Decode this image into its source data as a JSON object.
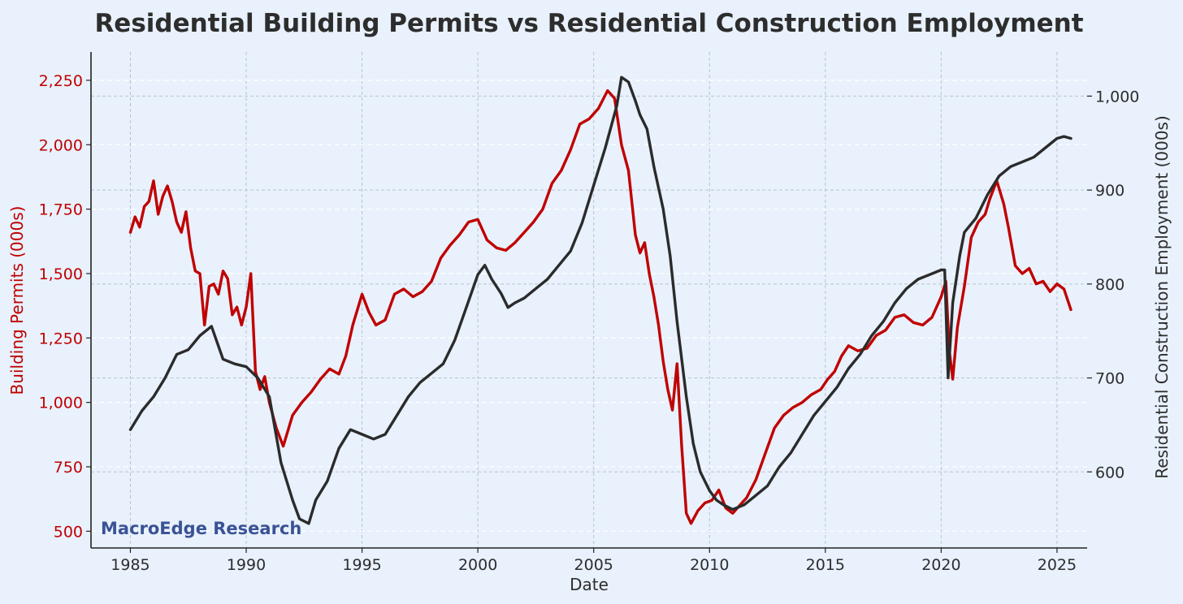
{
  "chart_data": {
    "type": "line",
    "title": "Residential Building Permits vs Residential Construction Employment",
    "xlabel": "Date",
    "ylabel_left": "Building Permits (000s)",
    "ylabel_right": "Residential Construction Employment (000s)",
    "watermark": "MacroEdge Research",
    "xlim": [
      1983.3,
      2026.3
    ],
    "x_ticks": [
      1985,
      1990,
      1995,
      2000,
      2005,
      2010,
      2015,
      2020,
      2025
    ],
    "x_tick_labels": [
      "1985",
      "1990",
      "1995",
      "2000",
      "2005",
      "2010",
      "2015",
      "2020",
      "2025"
    ],
    "ylim_left": [
      435,
      2360
    ],
    "y_ticks_left": [
      500,
      750,
      1000,
      1250,
      1500,
      1750,
      2000,
      2250
    ],
    "y_tick_labels_left": [
      "500",
      "750",
      "1,000",
      "1,250",
      "1,500",
      "1,750",
      "2,000",
      "2,250"
    ],
    "ylim_right": [
      519,
      1047
    ],
    "y_ticks_right": [
      600,
      700,
      800,
      900,
      1000
    ],
    "y_tick_labels_right": [
      "600",
      "700",
      "800",
      "900",
      "1,000"
    ],
    "grid": true,
    "colors": {
      "permits": "#c00000",
      "employment": "#2b2b2b",
      "left_axis": "#c00000",
      "right_axis": "#2d2d2d",
      "watermark": "#3a5296"
    },
    "series": [
      {
        "key": "permits",
        "axis": "left",
        "x": [
          1985.0,
          1985.2,
          1985.4,
          1985.6,
          1985.8,
          1986.0,
          1986.2,
          1986.4,
          1986.6,
          1986.8,
          1987.0,
          1987.2,
          1987.4,
          1987.6,
          1987.8,
          1988.0,
          1988.2,
          1988.4,
          1988.6,
          1988.8,
          1989.0,
          1989.2,
          1989.4,
          1989.6,
          1989.8,
          1990.0,
          1990.2,
          1990.4,
          1990.6,
          1990.8,
          1991.0,
          1991.3,
          1991.6,
          1992.0,
          1992.4,
          1992.8,
          1993.2,
          1993.6,
          1994.0,
          1994.3,
          1994.6,
          1995.0,
          1995.3,
          1995.6,
          1996.0,
          1996.4,
          1996.8,
          1997.2,
          1997.6,
          1998.0,
          1998.4,
          1998.8,
          1999.2,
          1999.6,
          2000.0,
          2000.4,
          2000.8,
          2001.2,
          2001.6,
          2002.0,
          2002.4,
          2002.8,
          2003.2,
          2003.6,
          2004.0,
          2004.4,
          2004.8,
          2005.2,
          2005.6,
          2005.9,
          2006.2,
          2006.5,
          2006.8,
          2007.0,
          2007.2,
          2007.4,
          2007.6,
          2007.8,
          2008.0,
          2008.2,
          2008.4,
          2008.6,
          2008.8,
          2009.0,
          2009.2,
          2009.5,
          2009.8,
          2010.1,
          2010.4,
          2010.7,
          2011.0,
          2011.3,
          2011.6,
          2012.0,
          2012.4,
          2012.8,
          2013.2,
          2013.6,
          2014.0,
          2014.4,
          2014.8,
          2015.1,
          2015.4,
          2015.7,
          2016.0,
          2016.4,
          2016.8,
          2017.2,
          2017.6,
          2018.0,
          2018.4,
          2018.8,
          2019.2,
          2019.6,
          2020.0,
          2020.2,
          2020.35,
          2020.5,
          2020.7,
          2021.0,
          2021.3,
          2021.6,
          2021.9,
          2022.1,
          2022.4,
          2022.7,
          2022.9,
          2023.2,
          2023.5,
          2023.8,
          2024.1,
          2024.4,
          2024.7,
          2025.0,
          2025.3,
          2025.6
        ],
        "values": [
          1660,
          1720,
          1680,
          1760,
          1780,
          1860,
          1730,
          1800,
          1840,
          1780,
          1700,
          1660,
          1740,
          1600,
          1510,
          1500,
          1300,
          1450,
          1460,
          1420,
          1510,
          1480,
          1340,
          1370,
          1300,
          1370,
          1500,
          1120,
          1050,
          1100,
          1000,
          900,
          830,
          950,
          1000,
          1040,
          1090,
          1130,
          1110,
          1180,
          1300,
          1420,
          1350,
          1300,
          1320,
          1420,
          1440,
          1410,
          1430,
          1470,
          1560,
          1610,
          1650,
          1700,
          1710,
          1630,
          1600,
          1590,
          1620,
          1660,
          1700,
          1750,
          1850,
          1900,
          1980,
          2080,
          2100,
          2140,
          2210,
          2180,
          2000,
          1900,
          1650,
          1580,
          1620,
          1500,
          1410,
          1300,
          1160,
          1050,
          970,
          1150,
          830,
          570,
          530,
          580,
          610,
          620,
          660,
          590,
          570,
          600,
          630,
          700,
          800,
          900,
          950,
          980,
          1000,
          1030,
          1050,
          1090,
          1120,
          1180,
          1220,
          1200,
          1210,
          1260,
          1280,
          1330,
          1340,
          1310,
          1300,
          1330,
          1410,
          1470,
          1200,
          1090,
          1290,
          1450,
          1640,
          1700,
          1730,
          1790,
          1860,
          1770,
          1680,
          1530,
          1500,
          1520,
          1460,
          1470,
          1430,
          1460,
          1440,
          1360
        ]
      },
      {
        "key": "employment",
        "axis": "right",
        "x": [
          1985.0,
          1985.5,
          1986.0,
          1986.5,
          1987.0,
          1987.5,
          1988.0,
          1988.5,
          1989.0,
          1989.5,
          1990.0,
          1990.5,
          1991.0,
          1991.5,
          1992.0,
          1992.3,
          1992.7,
          1993.0,
          1993.5,
          1994.0,
          1994.5,
          1995.0,
          1995.5,
          1996.0,
          1996.5,
          1997.0,
          1997.5,
          1998.0,
          1998.5,
          1999.0,
          1999.5,
          2000.0,
          2000.3,
          2000.6,
          2001.0,
          2001.3,
          2001.6,
          2002.0,
          2002.5,
          2003.0,
          2003.5,
          2004.0,
          2004.5,
          2005.0,
          2005.5,
          2006.0,
          2006.2,
          2006.5,
          2006.8,
          2007.0,
          2007.3,
          2007.6,
          2008.0,
          2008.3,
          2008.6,
          2009.0,
          2009.3,
          2009.6,
          2010.0,
          2010.3,
          2010.6,
          2011.0,
          2011.5,
          2012.0,
          2012.5,
          2013.0,
          2013.5,
          2014.0,
          2014.5,
          2015.0,
          2015.5,
          2016.0,
          2016.5,
          2017.0,
          2017.5,
          2018.0,
          2018.5,
          2019.0,
          2019.5,
          2020.0,
          2020.15,
          2020.3,
          2020.5,
          2020.8,
          2021.0,
          2021.5,
          2022.0,
          2022.5,
          2023.0,
          2023.5,
          2024.0,
          2024.5,
          2025.0,
          2025.3,
          2025.6
        ],
        "values": [
          645,
          665,
          680,
          700,
          725,
          730,
          745,
          755,
          720,
          715,
          712,
          700,
          680,
          610,
          570,
          550,
          545,
          570,
          590,
          625,
          645,
          640,
          635,
          640,
          660,
          680,
          695,
          705,
          715,
          740,
          775,
          810,
          820,
          805,
          790,
          775,
          780,
          785,
          795,
          805,
          820,
          835,
          865,
          905,
          945,
          990,
          1020,
          1015,
          995,
          980,
          965,
          925,
          880,
          830,
          760,
          680,
          630,
          600,
          580,
          570,
          565,
          560,
          565,
          575,
          585,
          605,
          620,
          640,
          660,
          675,
          690,
          710,
          725,
          745,
          760,
          780,
          795,
          805,
          810,
          815,
          815,
          700,
          780,
          830,
          855,
          870,
          895,
          915,
          925,
          930,
          935,
          945,
          955,
          957,
          955
        ]
      }
    ]
  }
}
